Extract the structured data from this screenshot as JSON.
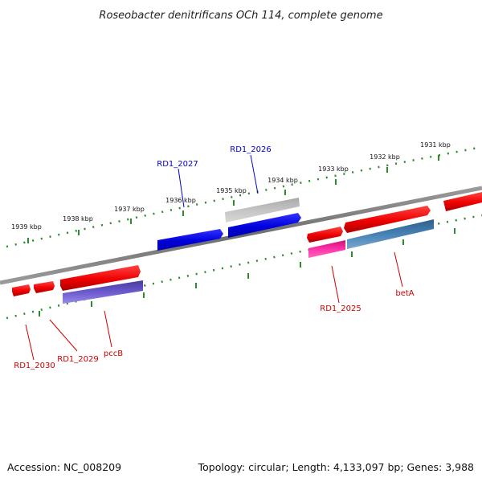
{
  "title": "Roseobacter denitrificans OCh 114, complete genome",
  "footer": {
    "accession": "Accession: NC_008209",
    "summary": "Topology: circular; Length: 4,133,097 bp; Genes: 3,988"
  },
  "ticks": [
    "1931 kbp",
    "1932 kbp",
    "1933 kbp",
    "1934 kbp",
    "1935 kbp",
    "1936 kbp",
    "1937 kbp",
    "1938 kbp",
    "1939 kbp"
  ],
  "genes": [
    {
      "label": "RD1_2026",
      "color": "#0000cc"
    },
    {
      "label": "RD1_2027",
      "color": "#0000cc"
    },
    {
      "label": "RD1_2025",
      "color": "#cc0000"
    },
    {
      "label": "betA",
      "color": "#cc0000"
    },
    {
      "label": "pccB",
      "color": "#cc0000"
    },
    {
      "label": "RD1_2029",
      "color": "#cc0000"
    },
    {
      "label": "RD1_2030",
      "color": "#cc0000"
    }
  ],
  "colors": {
    "backbone": "#7a7a7a",
    "ticks": "#2e8b2e",
    "forward": "#ee0000",
    "reverse_blue": "#0000dd",
    "grey_feature": "#b8b8b8",
    "pink_feature": "#ee1188",
    "steel_feature": "#4682b4",
    "purple_feature": "#6a5acd"
  }
}
